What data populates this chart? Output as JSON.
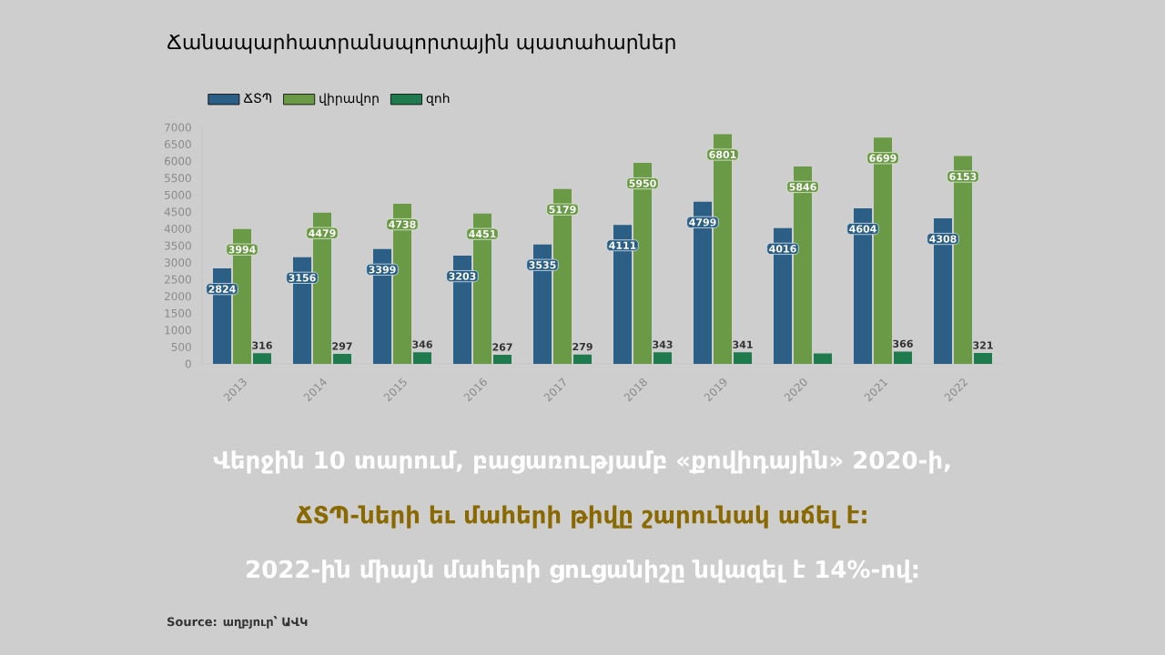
{
  "chart_data": {
    "type": "bar",
    "title": "Ճանապարհատրանսպորտային պատահարներ",
    "categories": [
      "2013",
      "2014",
      "2015",
      "2016",
      "2017",
      "2018",
      "2019",
      "2020",
      "2021",
      "2022"
    ],
    "series": [
      {
        "name": "ՃՏՊ",
        "color": "#2b5f86",
        "values": [
          2824,
          3156,
          3399,
          3203,
          3535,
          4111,
          4799,
          4016,
          4604,
          4308
        ],
        "value_labels": [
          "2824",
          "3156",
          "3399",
          "3203",
          "3535",
          "4111",
          "4799",
          "4016",
          "4604",
          "4308"
        ]
      },
      {
        "name": "վիրավոր",
        "color": "#6a9a45",
        "values": [
          3994,
          4479,
          4738,
          4451,
          5179,
          5950,
          6801,
          5846,
          6699,
          6153
        ],
        "value_labels": [
          "3994",
          "4479",
          "4738",
          "4451",
          "5179",
          "5950",
          "6801",
          "5846",
          "6699",
          "6153"
        ]
      },
      {
        "name": "զոհ",
        "color": "#1f7a4e",
        "values": [
          316,
          297,
          346,
          267,
          279,
          343,
          341,
          310,
          366,
          321
        ],
        "value_labels": [
          "316",
          "297",
          "346",
          "267",
          "279",
          "343",
          "341",
          null,
          "366",
          "321"
        ]
      }
    ],
    "ylim": [
      0,
      7000
    ],
    "yticks": [
      0,
      500,
      1000,
      1500,
      2000,
      2500,
      3000,
      3500,
      4000,
      4500,
      5000,
      5500,
      6000,
      6500,
      7000
    ],
    "legend": "top left",
    "annotations": [
      "Վերջին 10 տարում, բացառությամբ «քովիդային» 2020-ի,",
      "ՃՏՊ-ների եւ մահերի թիվը շարունակ աճել է:",
      "2022-ին միայն մահերի ցուցանիշը նվազել է 14%-ով:",
      "Source: աղբյուր՝ ԱՎԿ"
    ]
  }
}
